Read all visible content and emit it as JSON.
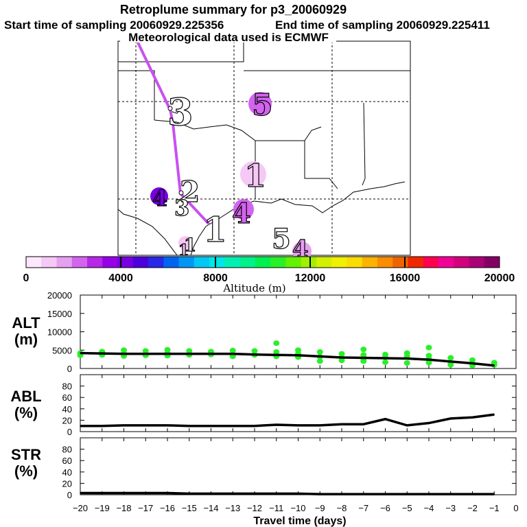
{
  "header": {
    "title": "Retroplume summary for p3_20060929",
    "start": "Start time of sampling 20060929.225356",
    "end": "End time of sampling 20060929.225411",
    "met": "Meteorological data used is ECMWF"
  },
  "map": {
    "plume_labels": [
      {
        "text": "5",
        "color": "#d264ee"
      },
      {
        "text": "3",
        "color": "#ffffff"
      },
      {
        "text": "1",
        "color": "#f5c8f5"
      },
      {
        "text": "4",
        "color": "#7800e0"
      },
      {
        "text": "2",
        "color": "#ffffff"
      },
      {
        "text": "3",
        "color": "#ffffff"
      },
      {
        "text": "4",
        "color": "#d264ee"
      },
      {
        "text": "1",
        "color": "#ffffff"
      },
      {
        "text": "1",
        "color": "#ffffff"
      },
      {
        "text": "5",
        "color": "#ffffff"
      },
      {
        "text": "4",
        "color": "#e6a0f0"
      },
      {
        "text": "1",
        "color": "#f5c8f5"
      }
    ],
    "track_color": "#c850f0"
  },
  "colorbar": {
    "ticks": [
      "0",
      "4000",
      "8000",
      "12000",
      "16000",
      "20000"
    ],
    "label": "Altitude (m)",
    "colors": [
      "#fde7fd",
      "#f5c8f5",
      "#e6a0f0",
      "#d264ee",
      "#b428e6",
      "#9600e6",
      "#7800e0",
      "#4b00dc",
      "#2828e6",
      "#0064f0",
      "#0096f5",
      "#00c8f5",
      "#00e6e6",
      "#00f0b4",
      "#00f08c",
      "#00f050",
      "#28f028",
      "#64f000",
      "#a0f000",
      "#d2f000",
      "#f0f000",
      "#fadc00",
      "#fab400",
      "#fa8c00",
      "#f06400",
      "#f02800",
      "#ff0050",
      "#f00096",
      "#d2007d",
      "#aa0078",
      "#820064"
    ]
  },
  "chart_data": [
    {
      "type": "line",
      "name": "ALT",
      "ylabel": "ALT\n(m)",
      "ylabel_lines": [
        "ALT",
        "(m)"
      ],
      "ylim": [
        0,
        20000
      ],
      "yticks": [
        "0",
        "5000",
        "10000",
        "15000",
        "20000"
      ],
      "x": [
        -20,
        -19,
        -18,
        -17,
        -16,
        -15,
        -14,
        -13,
        -12,
        -11,
        -10,
        -9,
        -8,
        -7,
        -6,
        -5,
        -4,
        -3,
        -2,
        -1
      ],
      "values": [
        4200,
        4100,
        4000,
        4000,
        4000,
        4000,
        4000,
        4000,
        3800,
        3700,
        3600,
        3300,
        3000,
        2900,
        2800,
        2700,
        2400,
        1900,
        1400,
        800
      ],
      "scatter_color": "#28f028",
      "scatter": [
        [
          -20,
          4200
        ],
        [
          -20,
          3600
        ],
        [
          -19,
          4600
        ],
        [
          -19,
          3700
        ],
        [
          -18,
          5000
        ],
        [
          -18,
          4100
        ],
        [
          -18,
          3400
        ],
        [
          -17,
          4800
        ],
        [
          -17,
          3600
        ],
        [
          -16,
          5100
        ],
        [
          -16,
          4200
        ],
        [
          -16,
          3500
        ],
        [
          -15,
          4800
        ],
        [
          -15,
          3700
        ],
        [
          -14,
          4600
        ],
        [
          -14,
          3800
        ],
        [
          -13,
          4900
        ],
        [
          -13,
          3600
        ],
        [
          -13,
          3300
        ],
        [
          -12,
          4800
        ],
        [
          -12,
          3700
        ],
        [
          -11,
          4500
        ],
        [
          -11,
          3300
        ],
        [
          -11,
          6900
        ],
        [
          -10,
          5000
        ],
        [
          -10,
          4000
        ],
        [
          -10,
          3100
        ],
        [
          -9,
          4500
        ],
        [
          -9,
          3200
        ],
        [
          -9,
          2000
        ],
        [
          -8,
          4000
        ],
        [
          -8,
          3000
        ],
        [
          -8,
          2200
        ],
        [
          -7,
          5200
        ],
        [
          -7,
          3700
        ],
        [
          -7,
          2700
        ],
        [
          -7,
          2000
        ],
        [
          -6,
          3800
        ],
        [
          -6,
          3000
        ],
        [
          -6,
          1700
        ],
        [
          -5,
          4200
        ],
        [
          -5,
          3300
        ],
        [
          -5,
          1500
        ],
        [
          -4,
          5700
        ],
        [
          -4,
          3500
        ],
        [
          -4,
          2600
        ],
        [
          -4,
          1600
        ],
        [
          -3,
          2900
        ],
        [
          -3,
          1500
        ],
        [
          -3,
          1000
        ],
        [
          -2,
          2300
        ],
        [
          -2,
          1200
        ],
        [
          -2,
          800
        ],
        [
          -1,
          1600
        ],
        [
          -1,
          1000
        ]
      ]
    },
    {
      "type": "line",
      "name": "ABL",
      "ylabel": "ABL\n(%)",
      "ylabel_lines": [
        "ABL",
        "(%)"
      ],
      "ylim": [
        0,
        100
      ],
      "yticks": [
        "0",
        "20",
        "40",
        "60",
        "80"
      ],
      "x": [
        -20,
        -19,
        -18,
        -17,
        -16,
        -15,
        -14,
        -13,
        -12,
        -11,
        -10,
        -9,
        -8,
        -7,
        -6,
        -5,
        -4,
        -3,
        -2,
        -1
      ],
      "values": [
        10,
        10,
        11,
        11,
        11,
        10,
        10,
        10,
        10,
        12,
        11,
        11,
        13,
        13,
        22,
        11,
        15,
        23,
        25,
        30
      ]
    },
    {
      "type": "line",
      "name": "STR",
      "ylabel": "STR\n(%)",
      "ylabel_lines": [
        "STR",
        "(%)"
      ],
      "ylim": [
        0,
        100
      ],
      "yticks": [
        "0",
        "20",
        "40",
        "60",
        "80"
      ],
      "x": [
        -20,
        -19,
        -18,
        -17,
        -16,
        -15,
        -14,
        -13,
        -12,
        -11,
        -10,
        -9,
        -8,
        -7,
        -6,
        -5,
        -4,
        -3,
        -2,
        -1
      ],
      "values": [
        3,
        3,
        3,
        3,
        3,
        2,
        2,
        2,
        2,
        2,
        2,
        1,
        1,
        1,
        1,
        1,
        1,
        1,
        1,
        1
      ],
      "xlabel": "Travel time (days)",
      "xticks": [
        "−20",
        "−19",
        "−18",
        "−17",
        "−16",
        "−15",
        "−14",
        "−13",
        "−12",
        "−11",
        "−10",
        "−9",
        "−8",
        "−7",
        "−6",
        "−5",
        "−4",
        "−3",
        "−2",
        "−1",
        "0"
      ],
      "xlim": [
        -20,
        0
      ]
    }
  ]
}
